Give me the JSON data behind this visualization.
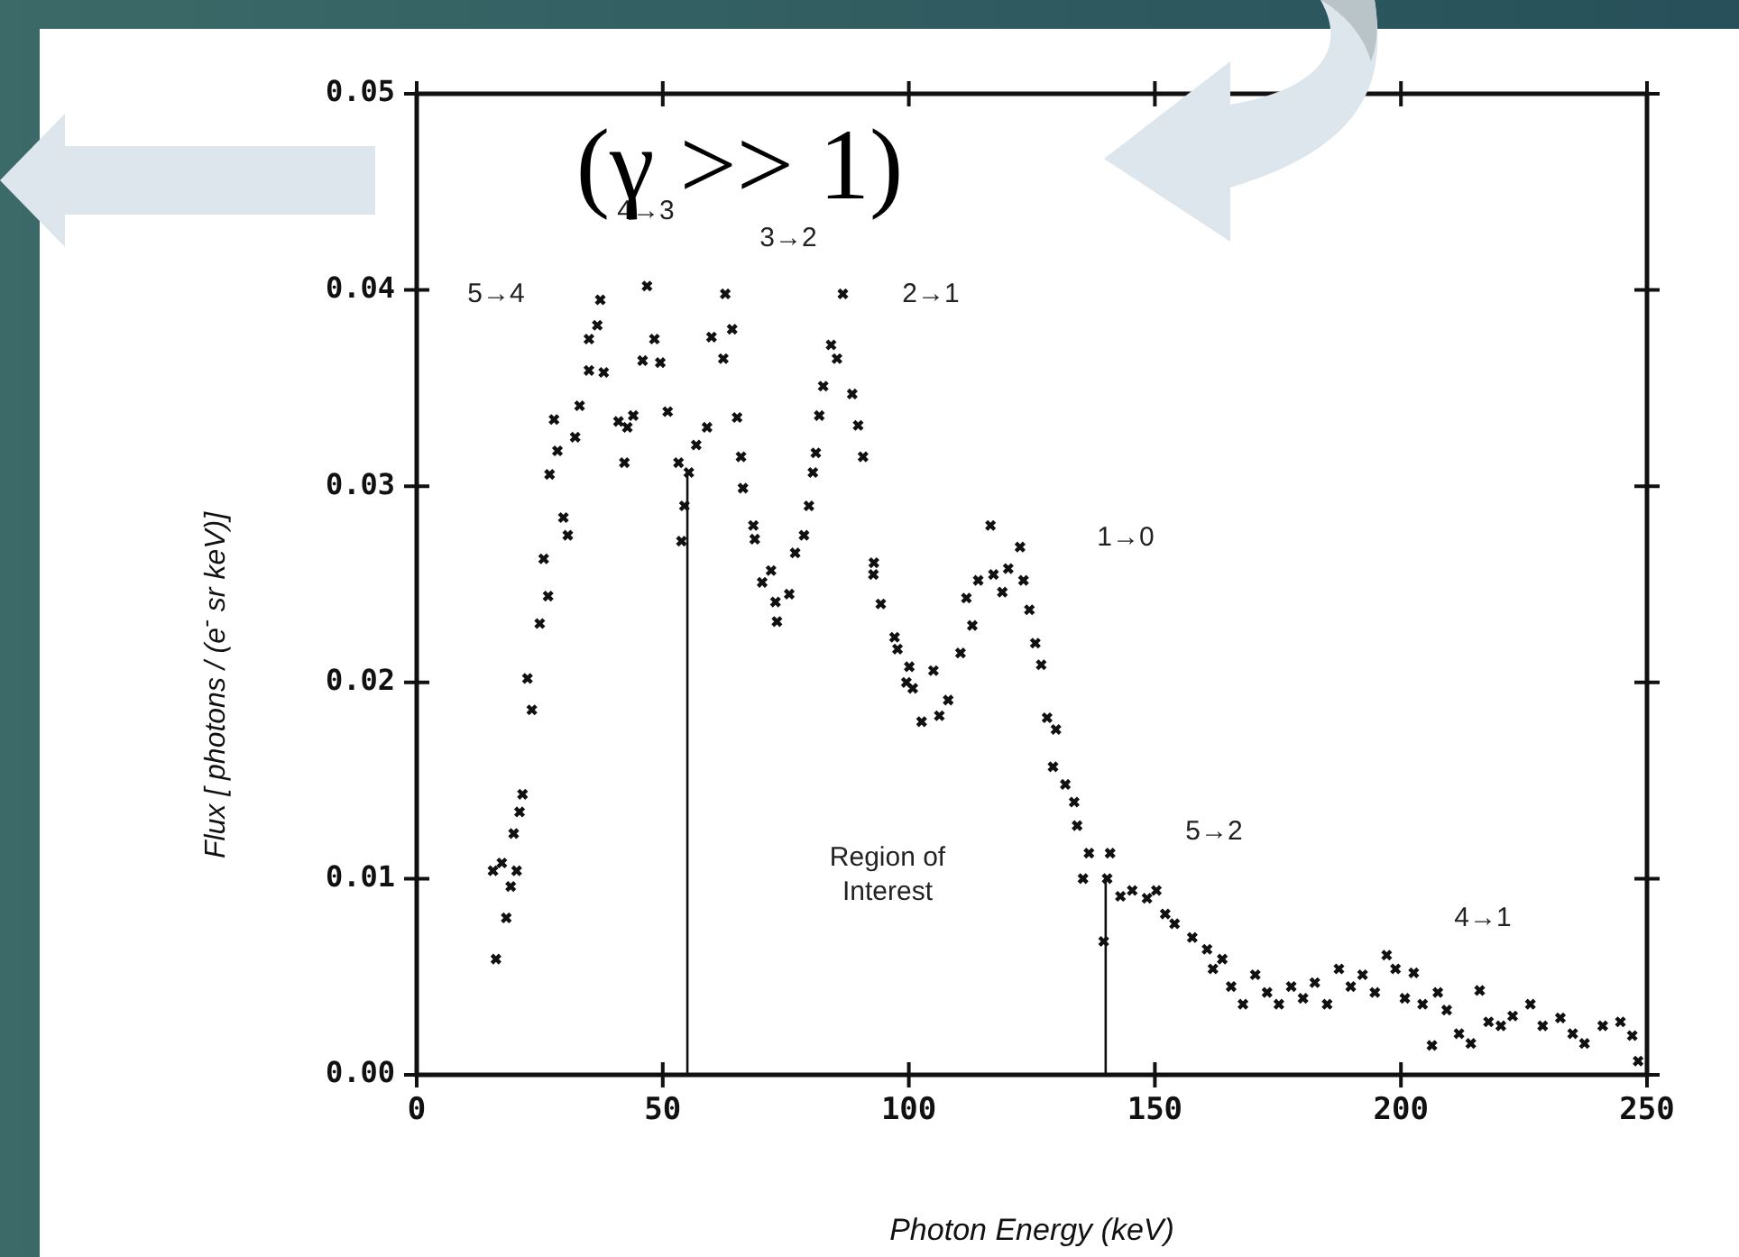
{
  "chart_data": {
    "type": "scatter",
    "xlabel": "Photon Energy (keV)",
    "ylabel": "Flux [ photons / (e$^{-}$ sr keV)]",
    "marker": "cross",
    "grid": false,
    "legend": false,
    "xlim": [
      0,
      250
    ],
    "xticks": [
      0,
      50,
      100,
      150,
      200,
      250
    ],
    "ylim": [
      0,
      0.05
    ],
    "yticks": [
      {
        "value": 0,
        "label": "0.00"
      },
      {
        "value": 0.01,
        "label": "0.01"
      },
      {
        "value": 0.02,
        "label": "0.02"
      },
      {
        "value": 0.03,
        "label": "0.03"
      },
      {
        "value": 0.04,
        "label": "0.04"
      },
      {
        "value": 0.05,
        "label": "0.05"
      }
    ],
    "series": [
      {
        "color": "#111111",
        "x": [
          16.1,
          18.2,
          15.5,
          17.3,
          19.1,
          20.3,
          19.7,
          20.9,
          21.5,
          23.4,
          22.5,
          25.0,
          26.7,
          25.8,
          30.7,
          29.8,
          27.0,
          28.6,
          32.2,
          27.9,
          33.1,
          35.0,
          38.0,
          35.0,
          36.7,
          37.3,
          41.0,
          42.8,
          42.2,
          44.0,
          45.9,
          49.5,
          48.3,
          46.8,
          51.0,
          53.2,
          55.3,
          54.4,
          53.8,
          56.8,
          59.0,
          59.9,
          64.1,
          62.7,
          62.3,
          65.1,
          65.9,
          66.3,
          68.4,
          68.7,
          70.2,
          72.0,
          72.9,
          73.2,
          75.7,
          76.9,
          78.7,
          79.7,
          80.5,
          81.1,
          81.8,
          82.6,
          84.2,
          85.4,
          86.6,
          88.5,
          89.7,
          90.7,
          92.8,
          92.9,
          94.3,
          97.1,
          97.7,
          100.1,
          99.5,
          100.8,
          102.6,
          106.2,
          105.0,
          108.0,
          110.5,
          112.9,
          111.7,
          114.1,
          117.2,
          116.6,
          119.0,
          120.2,
          122.6,
          123.3,
          124.5,
          125.7,
          126.9,
          128.1,
          129.9,
          129.3,
          131.8,
          133.6,
          134.2,
          136.6,
          135.4,
          140.3,
          140.9,
          139.6,
          143.0,
          145.4,
          148.4,
          150.3,
          152.1,
          154.0,
          157.6,
          160.6,
          161.8,
          163.7,
          165.5,
          167.9,
          170.4,
          172.8,
          175.2,
          177.7,
          180.1,
          182.5,
          185.0,
          187.4,
          189.8,
          192.2,
          194.7,
          197.1,
          198.9,
          200.8,
          202.6,
          204.4,
          206.3,
          207.5,
          209.3,
          211.8,
          214.2,
          216.0,
          217.8,
          220.3,
          222.7,
          226.3,
          228.8,
          232.4,
          234.9,
          237.3,
          241.0,
          244.6,
          247.0,
          248.2
        ],
        "values": [
          0.0059,
          0.008,
          0.0104,
          0.0108,
          0.0096,
          0.0104,
          0.0123,
          0.0134,
          0.0143,
          0.0186,
          0.0202,
          0.023,
          0.0244,
          0.0263,
          0.0275,
          0.0284,
          0.0306,
          0.0318,
          0.0325,
          0.0334,
          0.0341,
          0.0359,
          0.0358,
          0.0375,
          0.0382,
          0.0395,
          0.0333,
          0.033,
          0.0312,
          0.0336,
          0.0364,
          0.0363,
          0.0375,
          0.0402,
          0.0338,
          0.0312,
          0.0307,
          0.029,
          0.0272,
          0.0321,
          0.033,
          0.0376,
          0.038,
          0.0398,
          0.0365,
          0.0335,
          0.0315,
          0.0299,
          0.028,
          0.0273,
          0.0251,
          0.0257,
          0.0241,
          0.0231,
          0.0245,
          0.0266,
          0.0275,
          0.029,
          0.0307,
          0.0317,
          0.0336,
          0.0351,
          0.0372,
          0.0365,
          0.0398,
          0.0347,
          0.0331,
          0.0315,
          0.0255,
          0.0261,
          0.024,
          0.0223,
          0.0217,
          0.0208,
          0.02,
          0.0197,
          0.018,
          0.0183,
          0.0206,
          0.0191,
          0.0215,
          0.0229,
          0.0243,
          0.0252,
          0.0255,
          0.028,
          0.0246,
          0.0258,
          0.0269,
          0.0252,
          0.0237,
          0.022,
          0.0209,
          0.0182,
          0.0176,
          0.0157,
          0.0148,
          0.0139,
          0.0127,
          0.0113,
          0.01,
          0.01,
          0.0113,
          0.0068,
          0.0091,
          0.0094,
          0.009,
          0.0094,
          0.0082,
          0.0077,
          0.007,
          0.0064,
          0.0054,
          0.0059,
          0.0045,
          0.0036,
          0.0051,
          0.0042,
          0.0036,
          0.0045,
          0.0039,
          0.0047,
          0.0036,
          0.0054,
          0.0045,
          0.0051,
          0.0042,
          0.0061,
          0.0054,
          0.0039,
          0.0052,
          0.0036,
          0.0015,
          0.0042,
          0.0033,
          0.0021,
          0.0016,
          0.0043,
          0.0027,
          0.0025,
          0.003,
          0.0036,
          0.0025,
          0.0029,
          0.0021,
          0.0016,
          0.0025,
          0.0027,
          0.002,
          0.0007
        ]
      }
    ],
    "ref_lines": [
      {
        "axis": "x",
        "value": 55,
        "color": "#111111"
      },
      {
        "axis": "x",
        "value": 140,
        "color": "#111111"
      }
    ],
    "annotations": [
      "5→4",
      "4→3",
      "3→2",
      "2→1",
      "1→0",
      "5→2",
      "4→1",
      "Region of Interest",
      "(γ >> 1)"
    ]
  }
}
